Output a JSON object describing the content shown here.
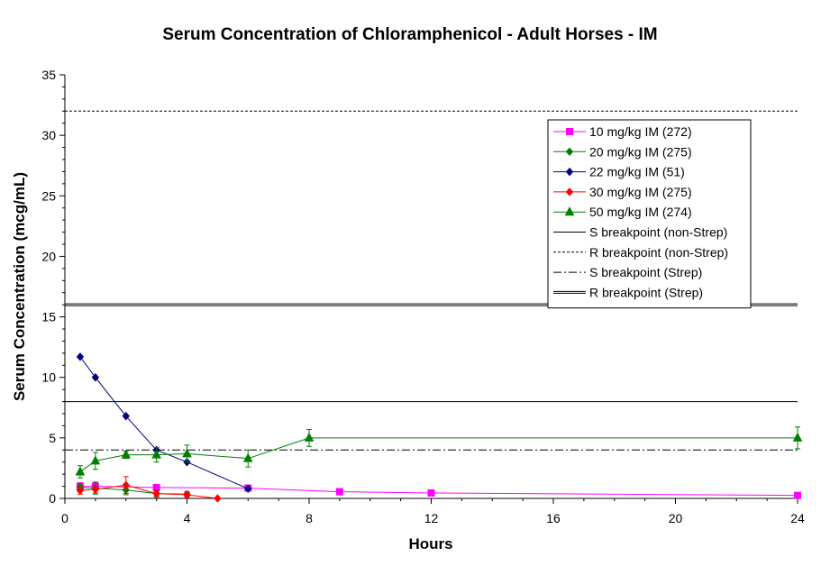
{
  "chart_data": {
    "type": "line",
    "title": "Serum Concentration of Chloramphenicol - Adult Horses - IM",
    "xlabel": "Hours",
    "ylabel": "Serum Concentration (mcg/mL)",
    "xlim": [
      0,
      24
    ],
    "ylim": [
      0,
      35
    ],
    "x_ticks": [
      0,
      4,
      8,
      12,
      16,
      20,
      24
    ],
    "y_ticks": [
      0,
      5,
      10,
      15,
      20,
      25,
      30,
      35
    ],
    "grid": false,
    "legend_position": "top-right",
    "series": [
      {
        "name": "10 mg/kg IM (272)",
        "color": "#ff00ff",
        "marker": "square",
        "x": [
          0.5,
          1,
          3,
          6,
          9,
          12,
          24
        ],
        "y": [
          1.0,
          1.0,
          0.9,
          0.85,
          0.55,
          0.45,
          0.25
        ],
        "err": [
          0.3,
          0.3,
          0.2,
          0.2,
          0,
          0,
          0
        ]
      },
      {
        "name": "20 mg/kg IM (275)",
        "color": "#008000",
        "marker": "diamond",
        "x": [
          0.5,
          1,
          2,
          3,
          4
        ],
        "y": [
          0.9,
          0.85,
          0.7,
          0.4,
          0.35
        ],
        "err": [
          0.3,
          0.5,
          0.4,
          0.3,
          0.2
        ]
      },
      {
        "name": "22 mg/kg IM (51)",
        "color": "#000080",
        "marker": "diamond",
        "x": [
          0.5,
          1,
          2,
          3,
          4,
          6
        ],
        "y": [
          11.7,
          10.0,
          6.8,
          4.0,
          3.0,
          0.8
        ],
        "err": [
          0,
          0,
          0,
          0,
          0,
          0
        ]
      },
      {
        "name": "30 mg/kg IM (275)",
        "color": "#ff0000",
        "marker": "diamond",
        "x": [
          0.5,
          1,
          2,
          3,
          4,
          5
        ],
        "y": [
          0.65,
          0.75,
          1.1,
          0.4,
          0.3,
          0.0
        ],
        "err": [
          0.3,
          0.3,
          0.7,
          0.2,
          0.2,
          0
        ]
      },
      {
        "name": "50 mg/kg IM (274)",
        "color": "#008000",
        "marker": "triangle",
        "x": [
          0.5,
          1,
          2,
          3,
          4,
          6,
          8,
          24
        ],
        "y": [
          2.2,
          3.1,
          3.6,
          3.6,
          3.7,
          3.3,
          5.0,
          5.0
        ],
        "err": [
          0.5,
          0.7,
          0.3,
          0.6,
          0.7,
          0.7,
          0.7,
          0.9
        ]
      }
    ],
    "reference_lines": [
      {
        "name": "S breakpoint (non-Strep)",
        "y": 8,
        "style": "solid-thin",
        "color": "#000000"
      },
      {
        "name": "R breakpoint (non-Strep)",
        "y": 32,
        "style": "dotted",
        "color": "#000000"
      },
      {
        "name": "S breakpoint (Strep)",
        "y": 4,
        "style": "dash-dot",
        "color": "#000000"
      },
      {
        "name": "R breakpoint (Strep)",
        "y": 16,
        "style": "double",
        "color": "#000000"
      }
    ]
  }
}
